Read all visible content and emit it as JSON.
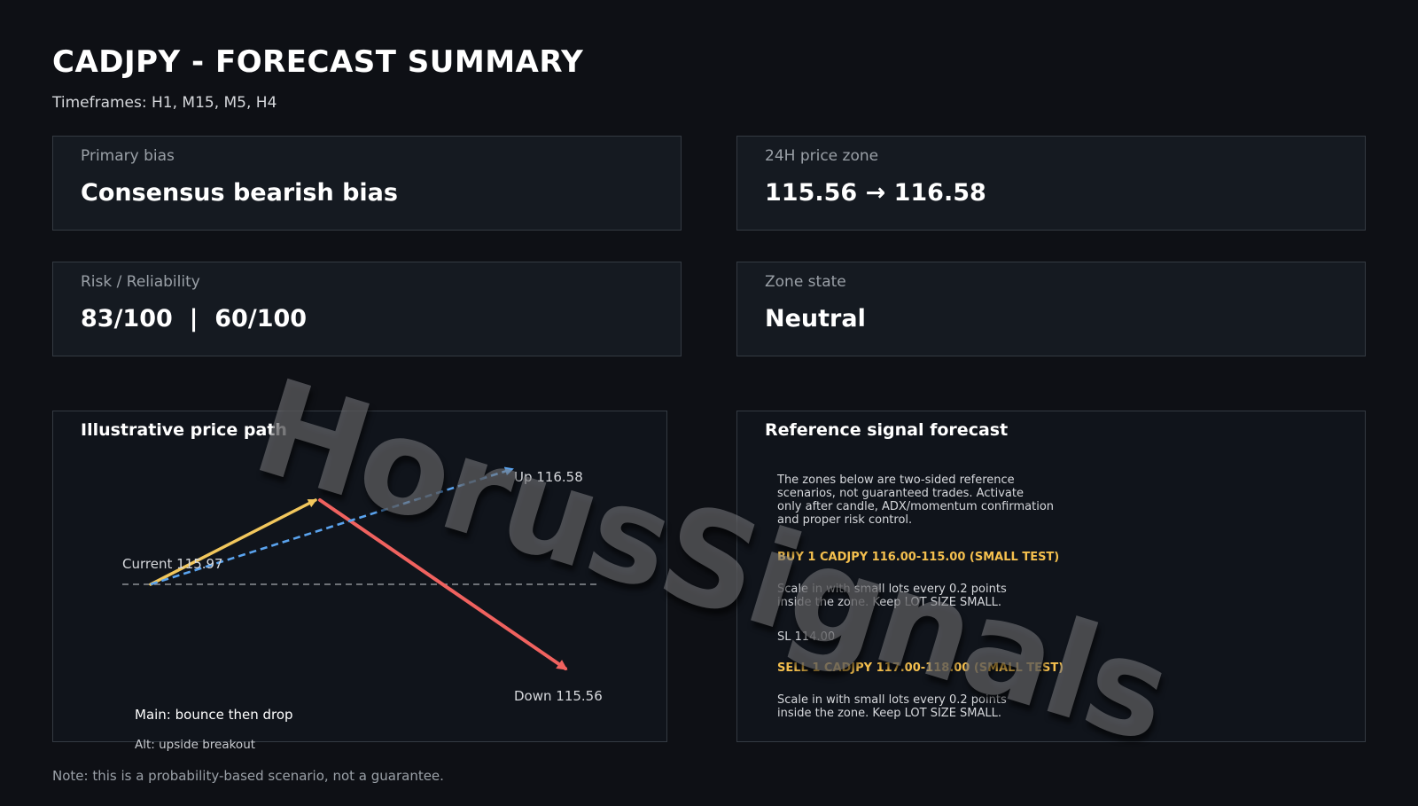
{
  "header": {
    "title": "CADJPY - FORECAST SUMMARY",
    "timeframes": "Timeframes: H1, M15, M5, H4"
  },
  "cards": {
    "primary_bias": {
      "label": "Primary bias",
      "value": "Consensus bearish bias"
    },
    "price_zone": {
      "label": "24H price zone",
      "value": "115.56 → 116.58"
    },
    "risk": {
      "label": "Risk / Reliability",
      "value": "83/100  |  60/100"
    },
    "zone_state": {
      "label": "Zone state",
      "value": "Neutral"
    }
  },
  "price_path": {
    "title": "Illustrative price path",
    "current_label": "Current 115.97",
    "up_label": "Up 116.58",
    "down_label": "Down 115.56",
    "legend_main": "Main: bounce then drop",
    "legend_alt": "Alt: upside breakout",
    "colors": {
      "main_up": "#f2c75c",
      "main_down": "#f0625f",
      "alt": "#5aa3ee",
      "baseline": "#8c9096"
    }
  },
  "chart_data": {
    "type": "line",
    "title": "Illustrative price path",
    "series": [
      {
        "name": "Main: bounce then drop",
        "path": [
          "current",
          "bounce",
          "down"
        ],
        "end_value": 115.56
      },
      {
        "name": "Alt: upside breakout",
        "path": [
          "current",
          "up"
        ],
        "end_value": 116.58
      }
    ],
    "current": 115.97
  },
  "signal": {
    "title": "Reference signal forecast",
    "intro": "The zones below are two-sided reference\nscenarios, not guaranteed trades. Activate\nonly after candle, ADX/momentum confirmation\nand proper risk control.",
    "buy_head": "BUY 1 CADJPY 116.00-115.00 (SMALL TEST)",
    "buy_body": "Scale in with small lots every 0.2 points\ninside the zone. Keep LOT SIZE SMALL.",
    "sl": "SL 114.00",
    "sell_head": "SELL 1 CADJPY 117.00-118.00 (SMALL TEST)",
    "sell_body": "Scale in with small lots every 0.2 points\ninside the zone. Keep LOT SIZE SMALL."
  },
  "note": "Note: this is a probability-based scenario, not a guarantee.",
  "watermark": "HorusSignals"
}
